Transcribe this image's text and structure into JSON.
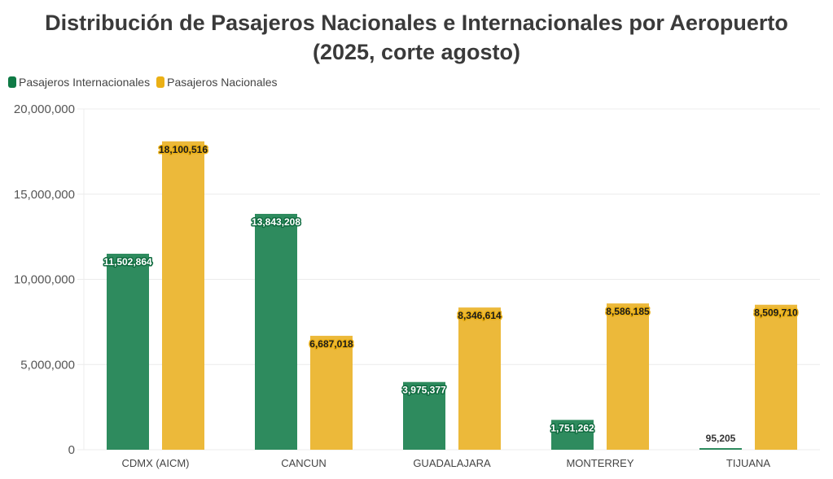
{
  "chart_data": {
    "type": "bar",
    "title": "Distribución de Pasajeros Nacionales e Internacionales por Aeropuerto (2025, corte agosto)",
    "title_lines": [
      "Distribución de Pasajeros Nacionales e Internacionales por Aeropuerto",
      "(2025, corte agosto)"
    ],
    "xlabel": "",
    "ylabel": "",
    "ylim": [
      0,
      20000000
    ],
    "yticks": [
      "0",
      "5,000,000",
      "10,000,000",
      "15,000,000",
      "20,000,000"
    ],
    "ytick_values": [
      0,
      5000000,
      10000000,
      15000000,
      20000000
    ],
    "grid": true,
    "legend_position": "top-left",
    "categories": [
      "CDMX (AICM)",
      "CANCUN",
      "GUADALAJARA",
      "MONTERREY",
      "TIJUANA"
    ],
    "series": [
      {
        "name": "Pasajeros Internacionales",
        "color": "#2e8b5e",
        "legend_color": "#0f7a45",
        "values": [
          11502864,
          13843208,
          3975377,
          1751262,
          95205
        ],
        "labels": [
          "11,502,864",
          "13,843,208",
          "3,975,377",
          "1,751,262",
          "95,205"
        ]
      },
      {
        "name": "Pasajeros Nacionales",
        "color": "#ecb93a",
        "legend_color": "#ebb015",
        "values": [
          18100516,
          6687018,
          8346614,
          8586185,
          8509710
        ],
        "labels": [
          "18,100,516",
          "6,687,018",
          "8,346,614",
          "8,586,185",
          "8,509,710"
        ]
      }
    ]
  }
}
